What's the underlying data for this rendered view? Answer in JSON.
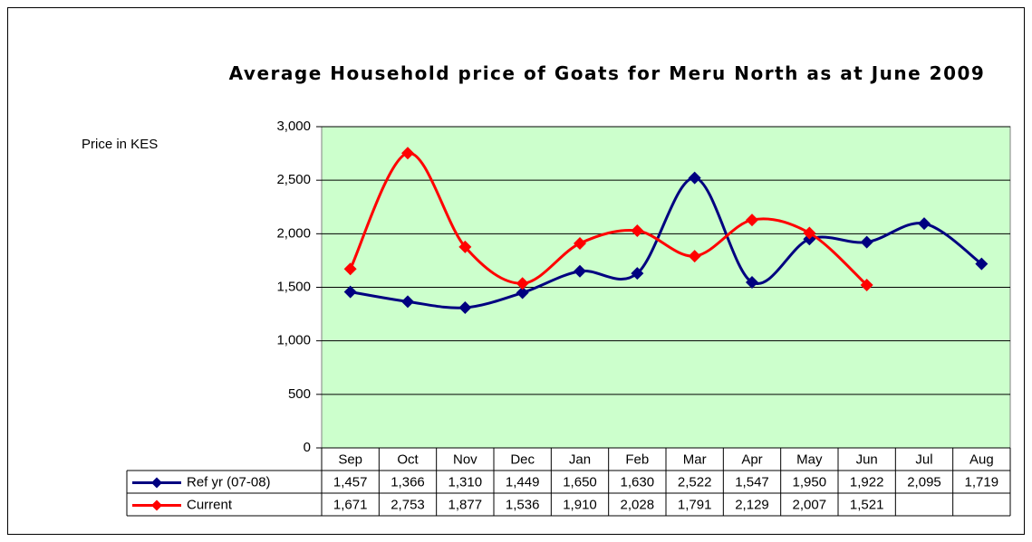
{
  "chart_data": {
    "type": "line",
    "title": "Average Household price of Goats for Meru North as at June 2009",
    "y_label": "Price in KES",
    "categories": [
      "Sep",
      "Oct",
      "Nov",
      "Dec",
      "Jan",
      "Feb",
      "Mar",
      "Apr",
      "May",
      "Jun",
      "Jul",
      "Aug"
    ],
    "series": [
      {
        "name": "Ref yr (07-08)",
        "color": "#000080",
        "values": [
          1457,
          1366,
          1310,
          1449,
          1650,
          1630,
          2522,
          1547,
          1950,
          1922,
          2095,
          1719
        ],
        "value_labels": [
          "1,457",
          "1,366",
          "1,310",
          "1,449",
          "1,650",
          "1,630",
          "2,522",
          "1,547",
          "1,950",
          "1,922",
          "2,095",
          "1,719"
        ]
      },
      {
        "name": "Current",
        "color": "#ff0000",
        "values": [
          1671,
          2753,
          1877,
          1536,
          1910,
          2028,
          1791,
          2129,
          2007,
          1521,
          null,
          null
        ],
        "value_labels": [
          "1,671",
          "2,753",
          "1,877",
          "1,536",
          "1,910",
          "2,028",
          "1,791",
          "2,129",
          "2,007",
          "1,521",
          null,
          null
        ]
      }
    ],
    "ylim": [
      0,
      3000
    ],
    "yticks": [
      0,
      500,
      {
        "value": 1000,
        "label": "1,000"
      },
      {
        "value": 1500,
        "label": "1,500"
      },
      {
        "value": 2000,
        "label": "2,000"
      },
      {
        "value": 2500,
        "label": "2,500"
      },
      {
        "value": 3000,
        "label": "3,000"
      }
    ],
    "grid": true,
    "plot_background": "#ccffcc",
    "smooth": true
  }
}
